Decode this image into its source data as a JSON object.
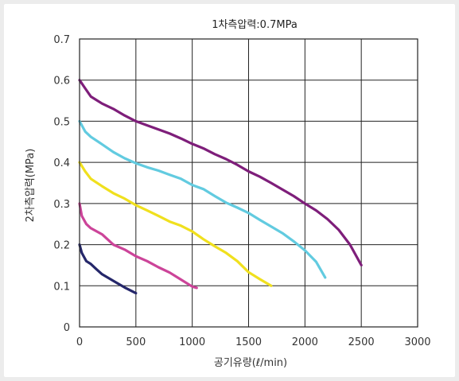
{
  "chart_data": {
    "type": "line",
    "title": "1차측압력:0.7MPa",
    "xlabel": "공기유량(ℓ/min)",
    "ylabel": "2차측압력(MPa)",
    "xlim": [
      0,
      3000
    ],
    "ylim": [
      0,
      0.7
    ],
    "xticks": [
      "0",
      "500",
      "1000",
      "1500",
      "2000",
      "2500",
      "3000"
    ],
    "yticks": [
      "0",
      "0.1",
      "0.2",
      "0.3",
      "0.4",
      "0.5",
      "0.6",
      "0.7"
    ],
    "grid": true,
    "legend": "none",
    "series": [
      {
        "color": "#25276a",
        "x": [
          0,
          20,
          60,
          100,
          150,
          200,
          300,
          400,
          500
        ],
        "y": [
          0.2,
          0.18,
          0.16,
          0.153,
          0.14,
          0.128,
          0.112,
          0.096,
          0.082
        ]
      },
      {
        "color": "#cc4499",
        "x": [
          0,
          20,
          60,
          100,
          200,
          300,
          400,
          500,
          600,
          700,
          800,
          900,
          1000,
          1040
        ],
        "y": [
          0.3,
          0.27,
          0.25,
          0.24,
          0.225,
          0.2,
          0.188,
          0.172,
          0.16,
          0.145,
          0.132,
          0.115,
          0.098,
          0.095
        ]
      },
      {
        "color": "#f0e01e",
        "x": [
          0,
          50,
          100,
          200,
          300,
          400,
          500,
          600,
          700,
          800,
          900,
          1000,
          1100,
          1200,
          1300,
          1400,
          1500,
          1600,
          1700
        ],
        "y": [
          0.4,
          0.378,
          0.36,
          0.342,
          0.325,
          0.312,
          0.296,
          0.283,
          0.27,
          0.256,
          0.246,
          0.232,
          0.213,
          0.196,
          0.18,
          0.16,
          0.133,
          0.116,
          0.1
        ]
      },
      {
        "color": "#62cbe0",
        "x": [
          0,
          50,
          100,
          200,
          300,
          400,
          500,
          600,
          700,
          800,
          900,
          1000,
          1100,
          1200,
          1300,
          1400,
          1500,
          1600,
          1700,
          1800,
          1900,
          2000,
          2100,
          2180
        ],
        "y": [
          0.5,
          0.475,
          0.462,
          0.444,
          0.425,
          0.41,
          0.398,
          0.388,
          0.38,
          0.37,
          0.36,
          0.345,
          0.335,
          0.318,
          0.302,
          0.29,
          0.277,
          0.26,
          0.244,
          0.228,
          0.208,
          0.186,
          0.158,
          0.12
        ]
      },
      {
        "color": "#7e1e7a",
        "x": [
          0,
          50,
          100,
          200,
          300,
          400,
          500,
          600,
          700,
          800,
          900,
          1000,
          1100,
          1200,
          1300,
          1400,
          1500,
          1600,
          1700,
          1800,
          1900,
          2000,
          2100,
          2200,
          2300,
          2400,
          2500
        ],
        "y": [
          0.6,
          0.58,
          0.56,
          0.543,
          0.53,
          0.514,
          0.5,
          0.49,
          0.48,
          0.47,
          0.458,
          0.445,
          0.434,
          0.42,
          0.408,
          0.394,
          0.378,
          0.365,
          0.35,
          0.334,
          0.318,
          0.3,
          0.283,
          0.262,
          0.236,
          0.2,
          0.15
        ]
      }
    ]
  }
}
